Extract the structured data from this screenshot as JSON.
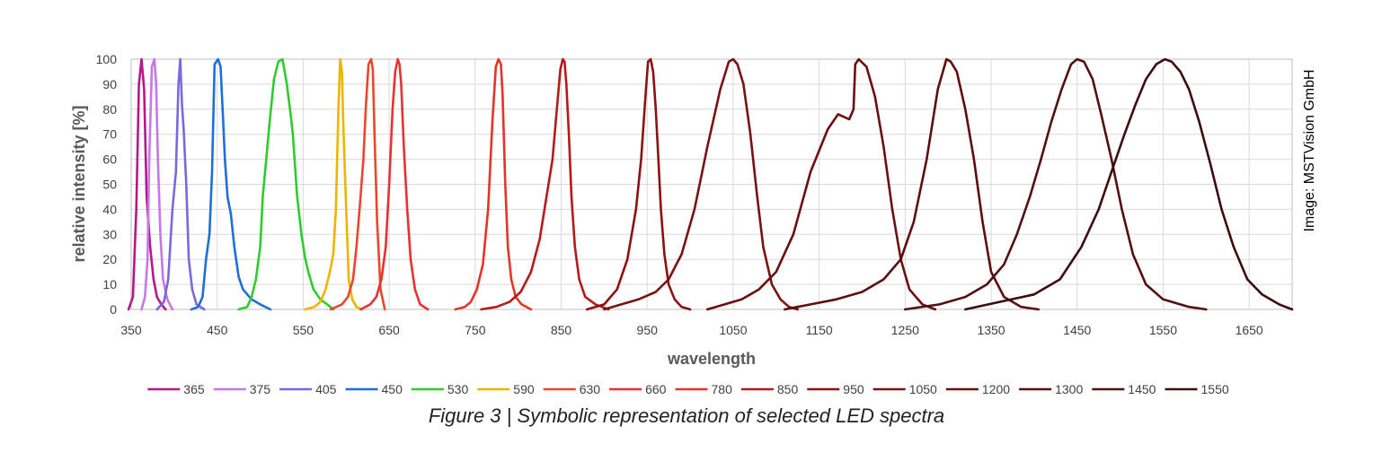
{
  "caption": "Figure 3 | Symbolic representation of selected LED spectra",
  "credit": "Image: MSTVision GmbH",
  "chart_data": {
    "type": "line",
    "xlabel": "wavelength",
    "ylabel": "relative intensity [%]",
    "xlim": [
      350,
      1700
    ],
    "ylim": [
      0,
      100
    ],
    "xticks": [
      350,
      450,
      550,
      650,
      750,
      850,
      950,
      1050,
      1150,
      1250,
      1350,
      1450,
      1550,
      1650
    ],
    "yticks": [
      0,
      10,
      20,
      30,
      40,
      50,
      60,
      70,
      80,
      90,
      100
    ],
    "grid": true,
    "legend_position": "bottom",
    "series": [
      {
        "name": "365",
        "color": "#b5178d",
        "x": [
          347,
          352,
          356,
          359,
          362,
          365,
          368,
          372,
          376,
          380,
          385,
          390
        ],
        "y": [
          0,
          5,
          40,
          90,
          100,
          88,
          45,
          25,
          12,
          5,
          2,
          0
        ]
      },
      {
        "name": "375",
        "color": "#c678e8",
        "x": [
          362,
          366,
          369,
          371,
          374,
          377,
          379,
          381,
          384,
          387,
          392,
          398
        ],
        "y": [
          0,
          5,
          20,
          60,
          97,
          100,
          90,
          60,
          30,
          12,
          4,
          0
        ]
      },
      {
        "name": "405",
        "color": "#7b68e0",
        "x": [
          380,
          388,
          393,
          398,
          402,
          405,
          407,
          409,
          411,
          414,
          417,
          421,
          426,
          435
        ],
        "y": [
          0,
          3,
          12,
          40,
          55,
          90,
          100,
          82,
          72,
          50,
          20,
          8,
          2,
          0
        ]
      },
      {
        "name": "450",
        "color": "#1e6fdb",
        "x": [
          420,
          428,
          433,
          437,
          441,
          444,
          447,
          451,
          454,
          457,
          459,
          462,
          466,
          470,
          475,
          480,
          490,
          500,
          512
        ],
        "y": [
          0,
          1,
          5,
          20,
          30,
          55,
          98,
          100,
          97,
          75,
          60,
          45,
          38,
          25,
          13,
          8,
          4,
          2,
          0
        ]
      },
      {
        "name": "530",
        "color": "#2ecc2e",
        "x": [
          475,
          485,
          490,
          495,
          500,
          503,
          507,
          511,
          516,
          521,
          526,
          531,
          535,
          538,
          543,
          548,
          552,
          556,
          562,
          570,
          578,
          585
        ],
        "y": [
          0,
          1,
          5,
          12,
          25,
          45,
          60,
          75,
          92,
          99,
          100,
          90,
          79,
          70,
          45,
          30,
          21,
          15,
          8,
          4,
          2,
          0
        ]
      },
      {
        "name": "590",
        "color": "#f0b400",
        "x": [
          552,
          563,
          570,
          576,
          581,
          585,
          588,
          591,
          593,
          595,
          597,
          600,
          603,
          607,
          612,
          618
        ],
        "y": [
          0,
          1,
          3,
          8,
          15,
          22,
          40,
          80,
          100,
          95,
          70,
          40,
          12,
          4,
          1,
          0
        ]
      },
      {
        "name": "630",
        "color": "#e8472a",
        "x": [
          582,
          595,
          602,
          608,
          612,
          616,
          620,
          623,
          626,
          629,
          631,
          633,
          636,
          640,
          645
        ],
        "y": [
          0,
          2,
          5,
          12,
          25,
          42,
          60,
          82,
          98,
          100,
          96,
          70,
          35,
          8,
          0
        ]
      },
      {
        "name": "660",
        "color": "#e63232",
        "x": [
          617,
          628,
          635,
          641,
          646,
          650,
          654,
          657,
          660,
          662,
          664,
          667,
          671,
          675,
          680,
          686,
          695
        ],
        "y": [
          0,
          2,
          5,
          12,
          25,
          50,
          80,
          95,
          100,
          98,
          90,
          65,
          40,
          20,
          8,
          2,
          0
        ]
      },
      {
        "name": "780",
        "color": "#e43526",
        "x": [
          727,
          738,
          745,
          752,
          759,
          765,
          770,
          774,
          777,
          780,
          782,
          785,
          788,
          792,
          797,
          804,
          815
        ],
        "y": [
          0,
          1,
          3,
          8,
          18,
          40,
          75,
          97,
          100,
          98,
          85,
          50,
          25,
          12,
          5,
          2,
          0
        ]
      },
      {
        "name": "850",
        "color": "#b51a1a",
        "x": [
          757,
          775,
          790,
          803,
          815,
          825,
          833,
          840,
          845,
          849,
          852,
          854,
          856,
          859,
          862,
          866,
          871,
          878,
          890,
          905
        ],
        "y": [
          0,
          1,
          3,
          7,
          15,
          28,
          45,
          60,
          80,
          96,
          100,
          99,
          90,
          70,
          45,
          25,
          12,
          5,
          2,
          0
        ]
      },
      {
        "name": "950",
        "color": "#8b1212",
        "x": [
          880,
          900,
          915,
          927,
          937,
          943,
          948,
          951,
          954,
          957,
          960,
          963,
          966,
          970,
          975,
          982,
          990,
          1000
        ],
        "y": [
          0,
          2,
          8,
          20,
          40,
          60,
          85,
          99,
          100,
          95,
          80,
          60,
          40,
          22,
          10,
          4,
          1,
          0
        ]
      },
      {
        "name": "1050",
        "color": "#791212",
        "x": [
          900,
          920,
          940,
          960,
          975,
          990,
          1005,
          1020,
          1035,
          1045,
          1050,
          1055,
          1062,
          1070,
          1078,
          1085,
          1095,
          1105,
          1115,
          1125
        ],
        "y": [
          0,
          2,
          4,
          7,
          12,
          22,
          40,
          65,
          88,
          99,
          100,
          98,
          90,
          70,
          45,
          25,
          10,
          4,
          1,
          0
        ]
      },
      {
        "name": "1200",
        "color": "#6b0f0f",
        "x": [
          1020,
          1040,
          1060,
          1080,
          1100,
          1120,
          1140,
          1160,
          1172,
          1185,
          1190,
          1192,
          1196,
          1205,
          1215,
          1225,
          1235,
          1245,
          1255,
          1270,
          1285
        ],
        "y": [
          0,
          2,
          4,
          8,
          15,
          30,
          55,
          72,
          78,
          76,
          80,
          98,
          100,
          97,
          85,
          65,
          40,
          20,
          8,
          2,
          0
        ]
      },
      {
        "name": "1300",
        "color": "#5e0e0e",
        "x": [
          1110,
          1140,
          1170,
          1200,
          1225,
          1245,
          1260,
          1275,
          1288,
          1298,
          1303,
          1310,
          1320,
          1330,
          1340,
          1350,
          1365,
          1385,
          1405
        ],
        "y": [
          0,
          2,
          4,
          7,
          12,
          20,
          35,
          60,
          88,
          100,
          99,
          95,
          80,
          60,
          35,
          15,
          5,
          1,
          0
        ]
      },
      {
        "name": "1450",
        "color": "#521010",
        "x": [
          1250,
          1290,
          1320,
          1345,
          1365,
          1380,
          1395,
          1408,
          1420,
          1432,
          1443,
          1450,
          1458,
          1468,
          1478,
          1490,
          1502,
          1515,
          1530,
          1550,
          1580,
          1600
        ],
        "y": [
          0,
          2,
          5,
          10,
          18,
          30,
          45,
          60,
          75,
          88,
          98,
          100,
          99,
          92,
          78,
          60,
          40,
          22,
          10,
          4,
          1,
          0
        ]
      },
      {
        "name": "1550",
        "color": "#3d0c0c",
        "x": [
          1320,
          1360,
          1400,
          1430,
          1455,
          1475,
          1490,
          1505,
          1518,
          1530,
          1542,
          1552,
          1560,
          1570,
          1580,
          1592,
          1605,
          1618,
          1632,
          1648,
          1665,
          1685,
          1700
        ],
        "y": [
          0,
          3,
          6,
          12,
          25,
          40,
          55,
          70,
          82,
          92,
          98,
          100,
          99,
          95,
          88,
          75,
          58,
          40,
          25,
          12,
          6,
          2,
          0
        ]
      }
    ]
  }
}
